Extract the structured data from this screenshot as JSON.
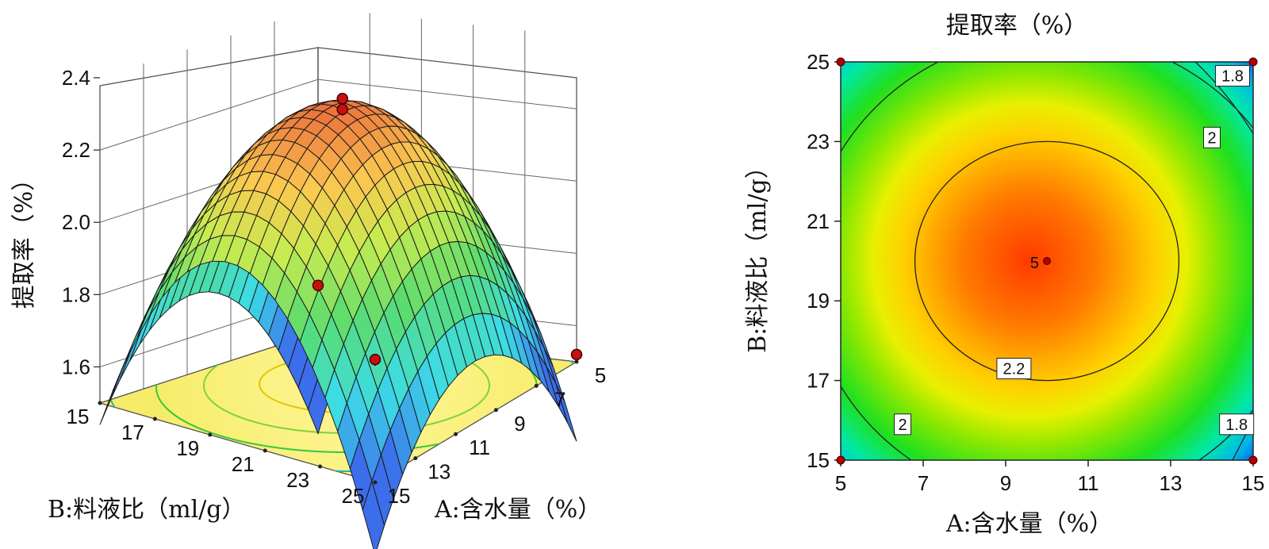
{
  "chart_data": [
    {
      "type": "surface3d",
      "zlabel": "提取率（%）",
      "xlabel": "A:含水量（%）",
      "ylabel": "B:料液比（ml/g）",
      "x_ticks": [
        "5",
        "7",
        "9",
        "11",
        "13",
        "15"
      ],
      "y_ticks": [
        "15",
        "17",
        "19",
        "21",
        "23",
        "25"
      ],
      "z_ticks": [
        "1.6",
        "1.8",
        "2.0",
        "2.2",
        "2.4"
      ],
      "xlim": [
        5,
        15
      ],
      "ylim": [
        15,
        25
      ],
      "zlim": [
        1.5,
        2.4
      ],
      "design_points": [
        {
          "x": 10,
          "y": 20,
          "z": 2.32
        },
        {
          "x": 10,
          "y": 20,
          "z": 2.29
        },
        {
          "x": 5,
          "y": 15,
          "z": 1.63
        },
        {
          "x": 15,
          "y": 25,
          "z": 1.84
        },
        {
          "x": 15,
          "y": 15,
          "z": 1.52
        }
      ]
    },
    {
      "type": "contour",
      "title": "提取率（%）",
      "xlabel": "A:含水量（%）",
      "ylabel": "B:料液比（ml/g）",
      "x_ticks": [
        "5",
        "7",
        "9",
        "11",
        "13",
        "15"
      ],
      "y_ticks": [
        "15",
        "17",
        "19",
        "21",
        "23",
        "25"
      ],
      "xlim": [
        5,
        15
      ],
      "ylim": [
        15,
        25
      ],
      "contour_levels": [
        {
          "value": 2.2,
          "label": "2.2"
        },
        {
          "value": 2.0,
          "label": "2"
        },
        {
          "value": 1.8,
          "label": "1.8"
        }
      ],
      "center_point": {
        "x": 10,
        "y": 20,
        "label": "5"
      },
      "corner_points": [
        {
          "x": 5,
          "y": 15
        },
        {
          "x": 5,
          "y": 25
        },
        {
          "x": 15,
          "y": 15
        },
        {
          "x": 15,
          "y": 25
        }
      ]
    }
  ]
}
